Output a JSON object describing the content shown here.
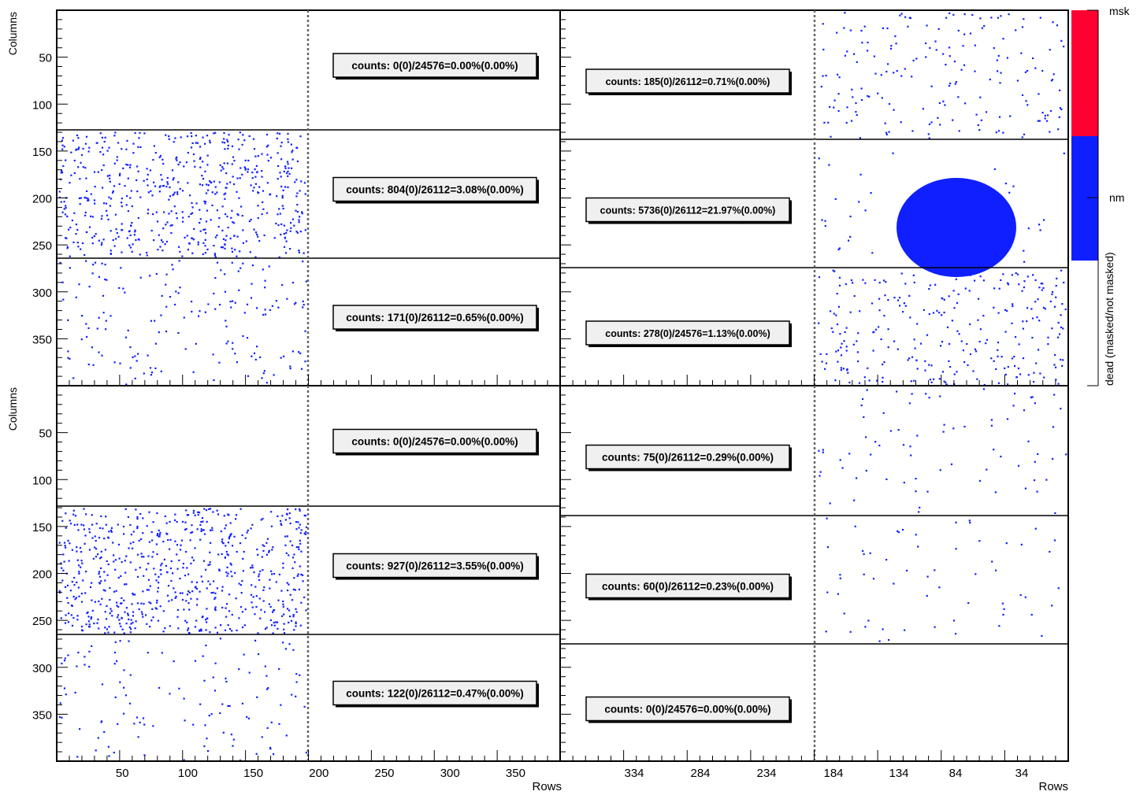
{
  "chart_data": {
    "type": "scatter",
    "x_axis_label": "Rows",
    "y_axis_label": "Columns",
    "colorbar": {
      "top_label": "msk",
      "mid_label": "nm",
      "side_label": "dead (masked/not masked)",
      "colors": {
        "masked": "#ff0033",
        "not_masked": "#0f1fff"
      }
    },
    "pixel_color": "#0f1fff",
    "y_ticks": [
      50,
      100,
      150,
      200,
      250,
      300,
      350
    ],
    "x_ticks_left": [
      50,
      100,
      150,
      200,
      250,
      300,
      350
    ],
    "x_ticks_right": [
      334,
      284,
      234,
      184,
      134,
      84,
      34
    ],
    "panels": [
      {
        "name": "top-left",
        "counts": [
          "counts: 0(0)/24576=0.00%(0.00%)",
          "counts: 804(0)/26112=3.08%(0.00%)",
          "counts: 171(0)/26112=0.65%(0.00%)"
        ],
        "band_dead_pixels": [
          0,
          804,
          171
        ]
      },
      {
        "name": "top-right",
        "counts": [
          "counts: 185(0)/26112=0.71%(0.00%)",
          "counts: 5736(0)/26112=21.97%(0.00%)",
          "counts: 278(0)/24576=1.13%(0.00%)"
        ],
        "band_dead_pixels": [
          185,
          5736,
          278
        ]
      },
      {
        "name": "bottom-left",
        "counts": [
          "counts: 0(0)/24576=0.00%(0.00%)",
          "counts: 927(0)/26112=3.55%(0.00%)",
          "counts: 122(0)/26112=0.47%(0.00%)"
        ],
        "band_dead_pixels": [
          0,
          927,
          122
        ]
      },
      {
        "name": "bottom-right",
        "counts": [
          "counts: 75(0)/26112=0.29%(0.00%)",
          "counts: 60(0)/26112=0.23%(0.00%)",
          "counts: 0(0)/24576=0.00%(0.00%)"
        ],
        "band_dead_pixels": [
          75,
          60,
          0
        ]
      }
    ]
  }
}
